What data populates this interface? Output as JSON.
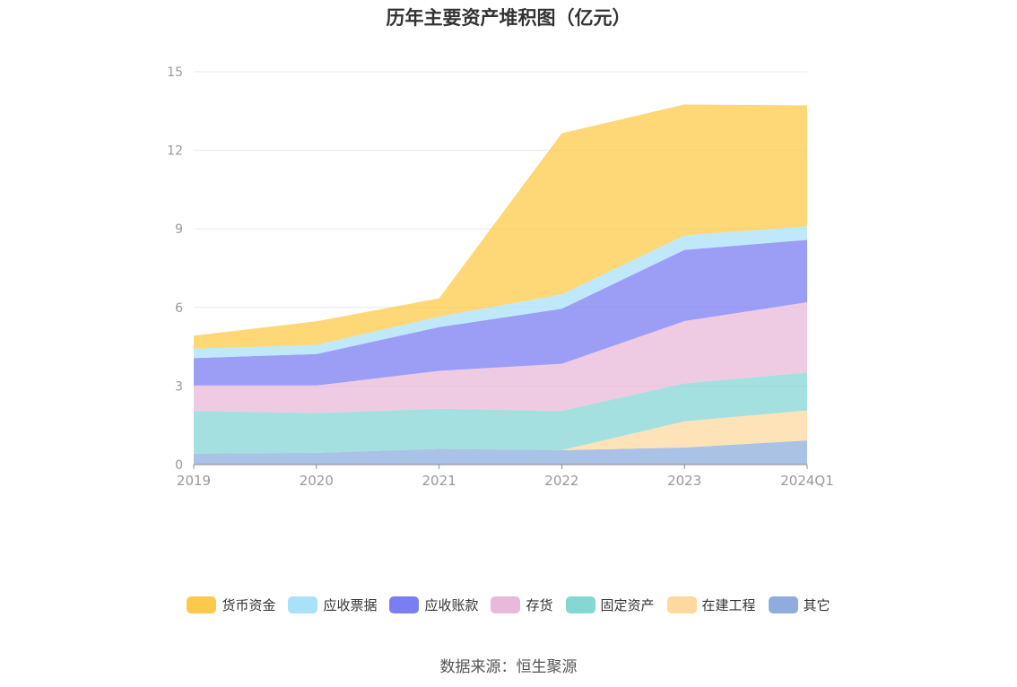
{
  "title": "历年主要资产堆积图（亿元）",
  "source": "数据来源：恒生聚源",
  "chart_data": {
    "type": "area",
    "stacked": true,
    "title": "历年主要资产堆积图（亿元）",
    "xlabel": "",
    "ylabel": "",
    "categories": [
      "2019",
      "2020",
      "2021",
      "2022",
      "2023",
      "2024Q1"
    ],
    "ylim": [
      0,
      15
    ],
    "yticks": [
      0,
      3,
      6,
      9,
      12,
      15
    ],
    "grid": true,
    "legend_position": "bottom",
    "series": [
      {
        "name": "其它",
        "color": "#8eaddc",
        "values": [
          0.42,
          0.45,
          0.6,
          0.55,
          0.65,
          0.92
        ]
      },
      {
        "name": "在建工程",
        "color": "#fdd9a0",
        "values": [
          0.0,
          0.0,
          0.0,
          0.0,
          1.0,
          1.15
        ]
      },
      {
        "name": "固定资产",
        "color": "#86d6d4",
        "values": [
          1.63,
          1.52,
          1.53,
          1.5,
          1.45,
          1.45
        ]
      },
      {
        "name": "存货",
        "color": "#e8b9d8",
        "values": [
          0.97,
          1.05,
          1.45,
          1.8,
          2.38,
          2.68
        ]
      },
      {
        "name": "应收账款",
        "color": "#7b7ef2",
        "values": [
          1.05,
          1.2,
          1.67,
          2.1,
          2.72,
          2.38
        ]
      },
      {
        "name": "应收票据",
        "color": "#a9e1f9",
        "values": [
          0.35,
          0.35,
          0.4,
          0.55,
          0.55,
          0.52
        ]
      },
      {
        "name": "货币资金",
        "color": "#fdc94a",
        "values": [
          0.5,
          0.9,
          0.7,
          6.15,
          5.0,
          4.62
        ]
      }
    ]
  },
  "legend_order": [
    "货币资金",
    "应收票据",
    "应收账款",
    "存货",
    "固定资产",
    "在建工程",
    "其它"
  ]
}
